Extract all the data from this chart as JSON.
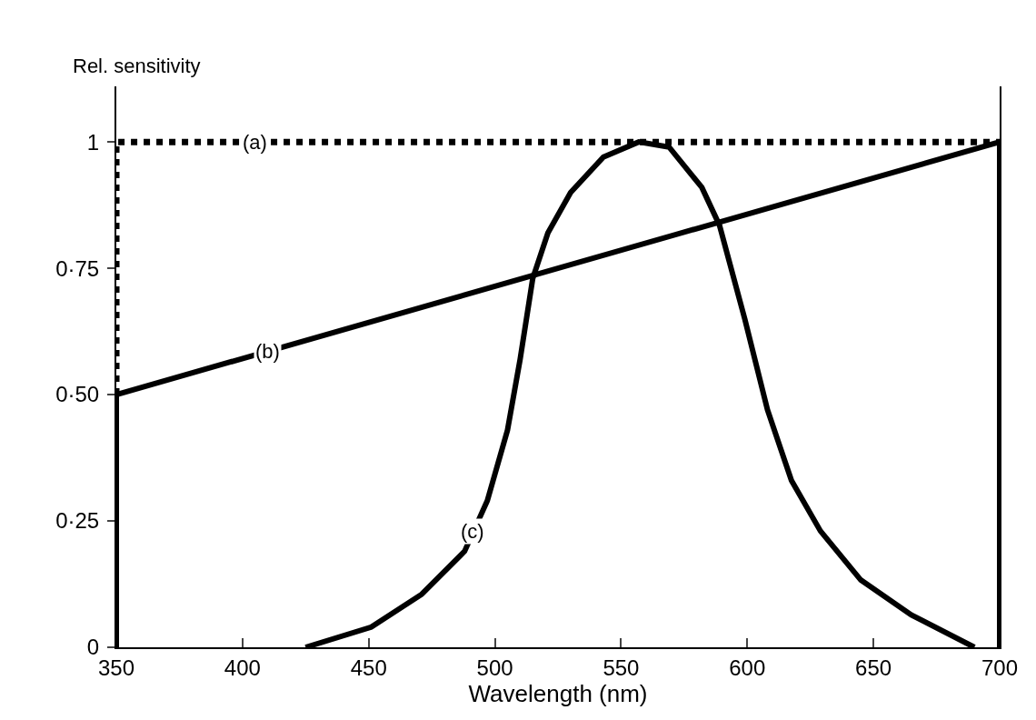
{
  "chart_data": {
    "type": "line",
    "xlabel": "Wavelength (nm)",
    "ylabel": "Rel. sensitivity",
    "xlim": [
      350,
      700
    ],
    "xticks": [
      350,
      400,
      450,
      500,
      550,
      600,
      650,
      700
    ],
    "ylim": [
      0,
      1.11
    ],
    "yticks": [
      0,
      {
        "value": 0.25,
        "label": "0·25"
      },
      {
        "value": 0.5,
        "label": "0·50"
      },
      {
        "value": 0.75,
        "label": "0·75"
      },
      1
    ],
    "grid": false,
    "marker": "none",
    "series": [
      {
        "color": "#000000",
        "line_style": "dotted",
        "x": [
          350,
          350,
          700
        ],
        "values": [
          0.5,
          1,
          1
        ]
      },
      {
        "color": "#000000",
        "line_style": "solid",
        "x": [
          350,
          350,
          700,
          700
        ],
        "values": [
          0,
          0.5,
          1,
          0
        ]
      },
      {
        "color": "#000000",
        "line_style": "solid",
        "x": [
          425,
          451,
          471,
          488,
          497,
          505,
          510,
          515,
          521,
          530,
          543,
          557,
          569,
          582,
          589,
          599,
          608,
          617.5,
          629,
          645,
          665,
          690
        ],
        "values": [
          0,
          0.04,
          0.105,
          0.19,
          0.29,
          0.43,
          0.57,
          0.73,
          0.82,
          0.9,
          0.97,
          1.0,
          0.99,
          0.91,
          0.835,
          0.65,
          0.47,
          0.33,
          0.23,
          0.133,
          0.064,
          0
        ]
      }
    ],
    "annotations": [
      {
        "text": "(a)",
        "x": 405,
        "y": 1
      },
      {
        "text": "(b)",
        "x": 410,
        "y": 0.586
      },
      {
        "text": "(c)",
        "x": 491,
        "y": 0.23
      }
    ]
  }
}
